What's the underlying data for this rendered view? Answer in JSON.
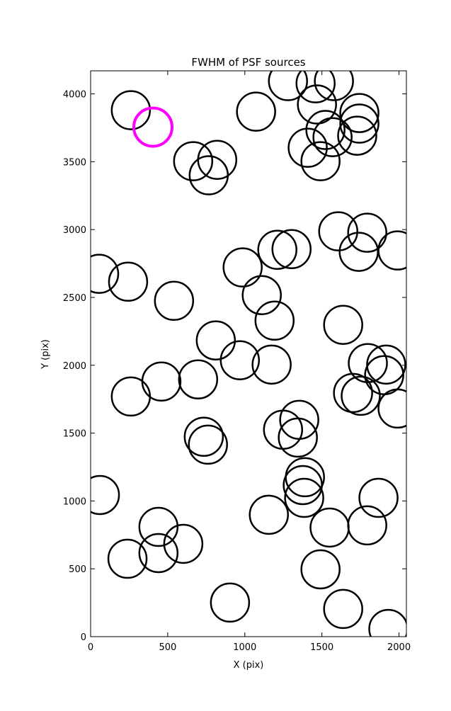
{
  "chart_data": {
    "type": "scatter",
    "title": "FWHM of PSF sources",
    "x_label": "X (pix)",
    "y_label": "Y (pix)",
    "xlim": [
      0,
      2048
    ],
    "ylim": [
      0,
      4170
    ],
    "xticks": [
      0,
      500,
      1000,
      1500,
      2000
    ],
    "yticks": [
      0,
      500,
      1000,
      1500,
      2000,
      2500,
      3000,
      3500,
      4000
    ],
    "grid": false,
    "series": [
      {
        "color": "#000000",
        "x": [
          261,
          665,
          821,
          766,
          1073,
          1280,
          1459,
          1578,
          1468,
          1523,
          1569,
          1408,
          1491,
          1743,
          1743,
          1729,
          1606,
          1794,
          1739,
          1991,
          1211,
          1303,
          986,
          55,
          243,
          541,
          1110,
          1193,
          1638,
          812,
          968,
          1174,
          697,
          459,
          261,
          1798,
          1917,
          1904,
          1702,
          1752,
          1991,
          1353,
          1248,
          1344,
          734,
          761,
          1390,
          1376,
          1385,
          60,
          1867,
          1156,
          1794,
          1550,
          440,
          601,
          440,
          239,
          1491,
          904,
          1638,
          1931
        ],
        "values": [
          3880,
          3504,
          3514,
          3400,
          3869,
          4094,
          4078,
          4094,
          3922,
          3734,
          3681,
          3603,
          3504,
          3859,
          3781,
          3692,
          2987,
          2977,
          2836,
          2846,
          2851,
          2856,
          2721,
          2674,
          2616,
          2475,
          2517,
          2329,
          2298,
          2183,
          2037,
          2005,
          1896,
          1880,
          1770,
          2016,
          2005,
          1927,
          1796,
          1775,
          1681,
          1598,
          1525,
          1467,
          1473,
          1415,
          1175,
          1117,
          1023,
          1044,
          1023,
          898,
          820,
          804,
          809,
          684,
          616,
          574,
          496,
          251,
          204,
          57
        ]
      },
      {
        "color": "#ff00ff",
        "x": [
          404
        ],
        "values": [
          3755
        ]
      }
    ]
  }
}
